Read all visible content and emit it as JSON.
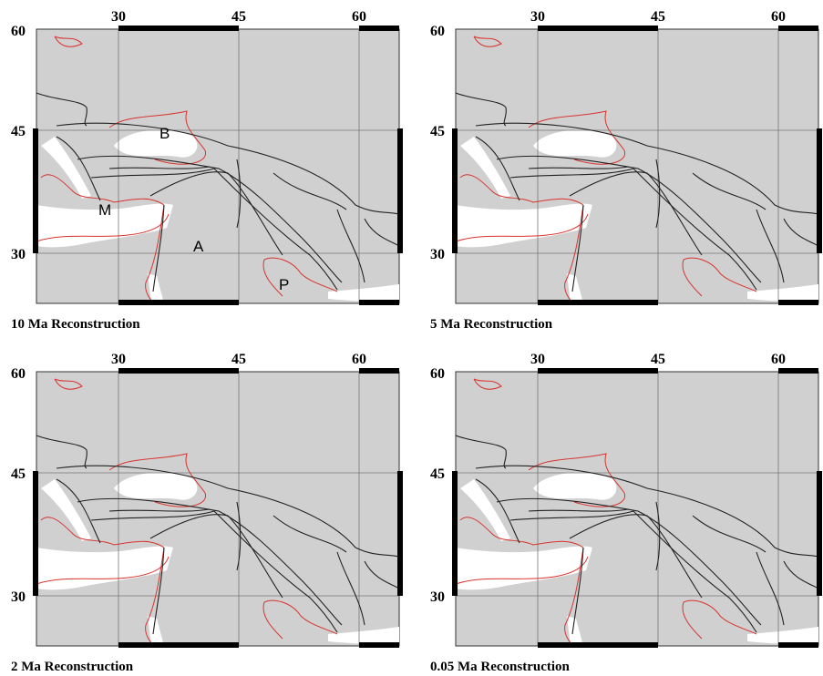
{
  "panels": [
    {
      "caption": "10 Ma Reconstruction",
      "x_labels": [
        "30",
        "45",
        "60"
      ],
      "y_labels": [
        "60",
        "45",
        "30"
      ],
      "annotations": [
        "B",
        "M",
        "A",
        "P"
      ]
    },
    {
      "caption": "5 Ma Reconstruction",
      "x_labels": [
        "30",
        "45",
        "60"
      ],
      "y_labels": [
        "60",
        "45",
        "30"
      ]
    },
    {
      "caption": "2 Ma Reconstruction",
      "x_labels": [
        "30",
        "45",
        "60"
      ],
      "y_labels": [
        "60",
        "45",
        "30"
      ]
    },
    {
      "caption": "0.05 Ma Reconstruction",
      "x_labels": [
        "30",
        "45",
        "60"
      ],
      "y_labels": [
        "60",
        "45",
        "30"
      ]
    }
  ]
}
